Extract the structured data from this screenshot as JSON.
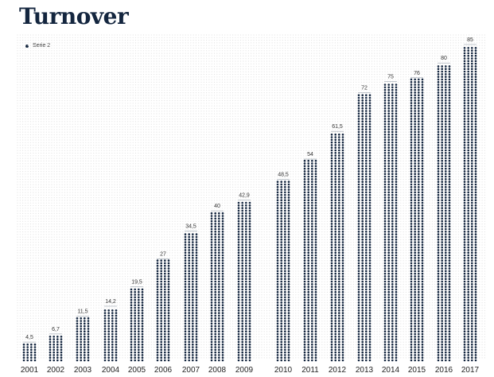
{
  "title": "Turnover",
  "legend": {
    "label": "Serie 2"
  },
  "colors": {
    "dots": "#14263f",
    "grid": "#e2e2e2"
  },
  "chart_data": {
    "type": "bar",
    "title": "Turnover",
    "style": "dot-matrix columns",
    "categories": [
      "2001",
      "2002",
      "2003",
      "2004",
      "2005",
      "2006",
      "2007",
      "2008",
      "2009",
      "2010",
      "2011",
      "2012",
      "2013",
      "2014",
      "2015",
      "2016",
      "2017"
    ],
    "series": [
      {
        "name": "Serie 2",
        "values": [
          4.5,
          6.7,
          11.5,
          14.2,
          19.5,
          27,
          34.5,
          40,
          42.9,
          48.5,
          54,
          61.5,
          72,
          75,
          76,
          80,
          85
        ],
        "labels": [
          "4,5",
          "6,7",
          "11,5",
          "14,2",
          "19,5",
          "27",
          "34,5",
          "40",
          "42,9",
          "48,5",
          "54",
          "61,5",
          "72",
          "75",
          "76",
          "80",
          "85"
        ]
      }
    ],
    "ylim": [
      0,
      88
    ],
    "grid": true,
    "legend_position": "top-left"
  }
}
